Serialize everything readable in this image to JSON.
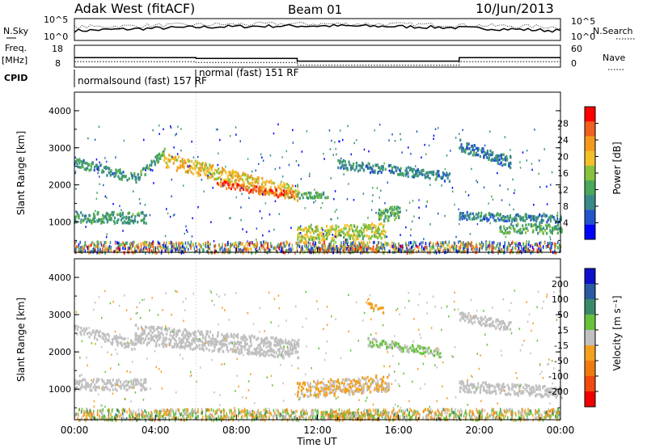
{
  "header": {
    "station": "Adak West (fitACF)",
    "beam": "Beam 01",
    "date": "10/Jun/2013"
  },
  "top_panels": {
    "nsky_label": "N.Sky",
    "nsky_tick_hi": "10^5",
    "nsky_tick_lo": "10^0",
    "nsearch_label": "N.Search",
    "nsearch_tick_hi": "10^5",
    "nsearch_tick_lo": "10^0",
    "freq_label": "Freq.",
    "freq_unit": "[MHz]",
    "freq_tick_hi": "18",
    "freq_tick_lo": "8",
    "nave_label": "Nave",
    "nave_tick_hi": "60",
    "nave_tick_lo": "0",
    "cpid_label": "CPID",
    "cpid_segments": [
      {
        "start_hour": 0,
        "end_hour": 6,
        "label": "normalsound (fast) 157 RF"
      },
      {
        "start_hour": 6,
        "end_hour": 24,
        "label": "normal (fast) 151 RF"
      }
    ],
    "freq_steps": [
      {
        "start_hour": 0,
        "end_hour": 6,
        "mhz": 12.0
      },
      {
        "start_hour": 6,
        "end_hour": 11,
        "mhz": 11.5
      },
      {
        "start_hour": 11,
        "end_hour": 19,
        "mhz": 10.0
      },
      {
        "start_hour": 19,
        "end_hour": 24,
        "mhz": 12.0
      }
    ]
  },
  "chart_data": [
    {
      "type": "heatmap",
      "quantity": "Power",
      "ylabel": "Slant Range [km]",
      "colorbar_label": "Power [dB]",
      "colorbar_ticks": [
        "4",
        "8",
        "12",
        "16",
        "20",
        "24",
        "28"
      ],
      "colorbar_range": [
        0,
        32
      ],
      "colors": [
        "#0000ff",
        "#2255cc",
        "#3a8a8a",
        "#4aa85a",
        "#88c23e",
        "#f4c02a",
        "#f39a1e",
        "#f06020",
        "#ff0000"
      ],
      "ylim": [
        180,
        4500
      ],
      "y_ticks": [
        1000,
        2000,
        3000,
        4000
      ],
      "features": [
        {
          "name": "band_a",
          "start_hour": 0.0,
          "end_hour": 3.0,
          "range_km": [
            2650,
            2200
          ],
          "width_km": 260,
          "value": 10
        },
        {
          "name": "band_b",
          "start_hour": 3.0,
          "end_hour": 4.4,
          "range_km": [
            2200,
            2900
          ],
          "width_km": 220,
          "value": 12
        },
        {
          "name": "band_c",
          "start_hour": 4.4,
          "end_hour": 11.0,
          "range_km": [
            2700,
            1800
          ],
          "width_km": 380,
          "value": 20
        },
        {
          "name": "band_d",
          "start_hour": 7.0,
          "end_hour": 10.8,
          "range_km": [
            2050,
            1750
          ],
          "width_km": 200,
          "value": 27
        },
        {
          "name": "band_e",
          "start_hour": 0.0,
          "end_hour": 3.5,
          "range_km": [
            1150,
            1150
          ],
          "width_km": 300,
          "value": 11
        },
        {
          "name": "band_f",
          "start_hour": 11.0,
          "end_hour": 15.3,
          "range_km": [
            700,
            800
          ],
          "width_km": 420,
          "value": 17
        },
        {
          "name": "band_g",
          "start_hour": 12.0,
          "end_hour": 15.0,
          "range_km": [
            300,
            300
          ],
          "width_km": 150,
          "value": 25
        },
        {
          "name": "band_h",
          "start_hour": 13.0,
          "end_hour": 18.5,
          "range_km": [
            2600,
            2250
          ],
          "width_km": 260,
          "value": 9
        },
        {
          "name": "band_i",
          "start_hour": 19.0,
          "end_hour": 21.5,
          "range_km": [
            3100,
            2650
          ],
          "width_km": 300,
          "value": 8
        },
        {
          "name": "band_j",
          "start_hour": 19.0,
          "end_hour": 24.0,
          "range_km": [
            1200,
            1100
          ],
          "width_km": 220,
          "value": 9
        },
        {
          "name": "band_k",
          "start_hour": 21.0,
          "end_hour": 24.0,
          "range_km": [
            850,
            850
          ],
          "width_km": 260,
          "value": 12
        },
        {
          "name": "band_l",
          "start_hour": 11.0,
          "end_hour": 12.5,
          "range_km": [
            1750,
            1750
          ],
          "width_km": 150,
          "value": 12
        },
        {
          "name": "band_m",
          "start_hour": 15.0,
          "end_hour": 16.0,
          "range_km": [
            1200,
            1300
          ],
          "width_km": 350,
          "value": 12
        }
      ]
    },
    {
      "type": "heatmap",
      "quantity": "Velocity",
      "ylabel": "Slant Range [km]",
      "xlabel": "Time UT",
      "colorbar_label": "Velocity [m s⁻¹]",
      "colorbar_ticks": [
        "200",
        "100",
        "50",
        "15",
        "-15",
        "-50",
        "-100",
        "-200"
      ],
      "colorbar_range": [
        -250,
        250
      ],
      "colors": [
        "#1010cc",
        "#2a5aa0",
        "#3a8a6a",
        "#66c23a",
        "#c0c0c0",
        "#f3a020",
        "#f07a10",
        "#f04a10",
        "#ee0000"
      ],
      "ylim": [
        180,
        4500
      ],
      "y_ticks": [
        1000,
        2000,
        3000,
        4000
      ],
      "x_ticks": [
        "00:00",
        "04:00",
        "08:00",
        "12:00",
        "16:00",
        "20:00",
        "00:00"
      ],
      "xlim_hours": [
        0,
        24
      ],
      "features": [
        {
          "name": "vband_a",
          "start_hour": 0.0,
          "end_hour": 3.0,
          "range_km": [
            2650,
            2200
          ],
          "width_km": 260,
          "value": 0
        },
        {
          "name": "vband_b",
          "start_hour": 3.0,
          "end_hour": 11.0,
          "range_km": [
            2500,
            2100
          ],
          "width_km": 520,
          "value": 0
        },
        {
          "name": "vband_c",
          "start_hour": 0.0,
          "end_hour": 3.5,
          "range_km": [
            1150,
            1150
          ],
          "width_km": 300,
          "value": 0
        },
        {
          "name": "vband_d",
          "start_hour": 11.0,
          "end_hour": 15.5,
          "range_km": [
            1000,
            1200
          ],
          "width_km": 450,
          "value": -30
        },
        {
          "name": "vband_e",
          "start_hour": 12.5,
          "end_hour": 15.0,
          "range_km": [
            350,
            300
          ],
          "width_km": 200,
          "value": -80
        },
        {
          "name": "vband_f",
          "start_hour": 14.5,
          "end_hour": 18.0,
          "range_km": [
            2300,
            2000
          ],
          "width_km": 220,
          "value": 30
        },
        {
          "name": "vband_g",
          "start_hour": 19.0,
          "end_hour": 21.5,
          "range_km": [
            3000,
            2700
          ],
          "width_km": 260,
          "value": 0
        },
        {
          "name": "vband_h",
          "start_hour": 19.0,
          "end_hour": 24.0,
          "range_km": [
            1100,
            950
          ],
          "width_km": 300,
          "value": 0
        },
        {
          "name": "vband_i",
          "start_hour": 14.5,
          "end_hour": 15.2,
          "range_km": [
            3300,
            3150
          ],
          "width_km": 150,
          "value": -60
        }
      ]
    }
  ]
}
